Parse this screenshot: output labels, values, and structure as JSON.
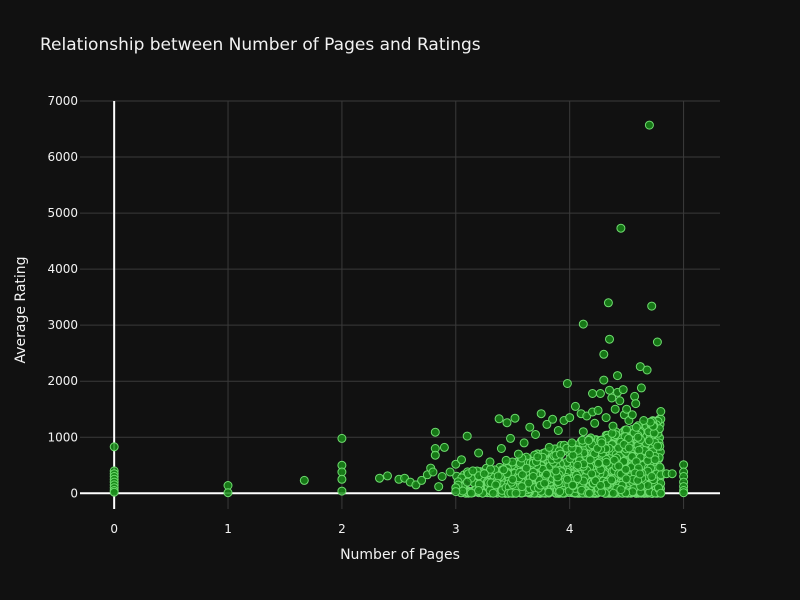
{
  "colors": {
    "background": "#111111",
    "marker": "#178a17",
    "marker_edge": "#6fdc6f",
    "grid": "#3a3a3a",
    "text": "#f2f2f2"
  },
  "chart_data": {
    "type": "scatter",
    "title": "Relationship between Number of Pages and Ratings",
    "xlabel": "Number of Pages",
    "ylabel": "Average Rating",
    "xlim": [
      -0.3,
      5.32
    ],
    "ylim": [
      -280,
      7000
    ],
    "xticks": [
      0,
      1,
      2,
      3,
      4,
      5
    ],
    "xtick_labels": [
      "0",
      "1",
      "2",
      "3",
      "4",
      "5"
    ],
    "yticks": [
      0,
      1000,
      2000,
      3000,
      4000,
      5000,
      6000,
      7000
    ],
    "ytick_labels": [
      "0",
      "1000",
      "2000",
      "3000",
      "4000",
      "5000",
      "6000",
      "7000"
    ],
    "grid": true,
    "legend": "none",
    "series": [
      {
        "points": [
          [
            0,
            830
          ],
          [
            0,
            400
          ],
          [
            0,
            350
          ],
          [
            0,
            300
          ],
          [
            0,
            250
          ],
          [
            0,
            200
          ],
          [
            0,
            150
          ],
          [
            0,
            100
          ],
          [
            0,
            50
          ],
          [
            0,
            20
          ],
          [
            1,
            140
          ],
          [
            1,
            10
          ],
          [
            1.67,
            230
          ],
          [
            2,
            980
          ],
          [
            2,
            500
          ],
          [
            2,
            380
          ],
          [
            2,
            250
          ],
          [
            2,
            40
          ],
          [
            2.33,
            270
          ],
          [
            2.4,
            310
          ],
          [
            2.5,
            250
          ],
          [
            2.55,
            270
          ],
          [
            2.6,
            200
          ],
          [
            2.65,
            150
          ],
          [
            2.7,
            230
          ],
          [
            2.75,
            330
          ],
          [
            2.78,
            450
          ],
          [
            2.8,
            380
          ],
          [
            2.82,
            1090
          ],
          [
            2.82,
            800
          ],
          [
            2.82,
            680
          ],
          [
            2.9,
            820
          ],
          [
            2.85,
            120
          ],
          [
            2.88,
            300
          ],
          [
            2.95,
            380
          ],
          [
            3.0,
            520
          ],
          [
            3.0,
            100
          ],
          [
            3.0,
            30
          ],
          [
            3.05,
            600
          ],
          [
            3.1,
            1020
          ],
          [
            3.1,
            200
          ],
          [
            3.15,
            400
          ],
          [
            3.2,
            720
          ],
          [
            3.2,
            50
          ],
          [
            3.25,
            350
          ],
          [
            3.3,
            560
          ],
          [
            3.35,
            150
          ],
          [
            3.38,
            1330
          ],
          [
            3.4,
            800
          ],
          [
            3.42,
            420
          ],
          [
            3.45,
            1260
          ],
          [
            3.48,
            980
          ],
          [
            3.5,
            250
          ],
          [
            3.52,
            1340
          ],
          [
            3.55,
            700
          ],
          [
            3.58,
            120
          ],
          [
            3.6,
            900
          ],
          [
            3.62,
            450
          ],
          [
            3.65,
            1180
          ],
          [
            3.68,
            300
          ],
          [
            3.7,
            1050
          ],
          [
            3.72,
            650
          ],
          [
            3.75,
            1420
          ],
          [
            3.78,
            180
          ],
          [
            3.8,
            1230
          ],
          [
            3.82,
            820
          ],
          [
            3.85,
            1320
          ],
          [
            3.88,
            400
          ],
          [
            3.9,
            1120
          ],
          [
            3.92,
            700
          ],
          [
            3.95,
            1300
          ],
          [
            3.98,
            1960
          ],
          [
            3.98,
            250
          ],
          [
            4.0,
            1350
          ],
          [
            4.02,
            900
          ],
          [
            4.05,
            1550
          ],
          [
            4.07,
            500
          ],
          [
            4.1,
            1420
          ],
          [
            4.12,
            3020
          ],
          [
            4.12,
            1100
          ],
          [
            4.15,
            1380
          ],
          [
            4.18,
            600
          ],
          [
            4.2,
            1780
          ],
          [
            4.2,
            1450
          ],
          [
            4.22,
            1250
          ],
          [
            4.25,
            1480
          ],
          [
            4.27,
            1780
          ],
          [
            4.28,
            900
          ],
          [
            4.3,
            2020
          ],
          [
            4.3,
            2480
          ],
          [
            4.32,
            1350
          ],
          [
            4.34,
            3400
          ],
          [
            4.35,
            1840
          ],
          [
            4.35,
            2750
          ],
          [
            4.37,
            1700
          ],
          [
            4.38,
            1200
          ],
          [
            4.4,
            1500
          ],
          [
            4.42,
            2100
          ],
          [
            4.42,
            1800
          ],
          [
            4.44,
            1650
          ],
          [
            4.45,
            4730
          ],
          [
            4.47,
            1850
          ],
          [
            4.48,
            1400
          ],
          [
            4.5,
            1500
          ],
          [
            4.52,
            1300
          ],
          [
            4.55,
            1400
          ],
          [
            4.57,
            1730
          ],
          [
            4.58,
            1600
          ],
          [
            4.6,
            1000
          ],
          [
            4.62,
            2260
          ],
          [
            4.63,
            1880
          ],
          [
            4.65,
            1300
          ],
          [
            4.68,
            2200
          ],
          [
            4.7,
            6570
          ],
          [
            4.72,
            3340
          ],
          [
            4.75,
            600
          ],
          [
            4.77,
            2700
          ],
          [
            4.8,
            1460
          ],
          [
            4.8,
            330
          ],
          [
            4.85,
            350
          ],
          [
            4.9,
            350
          ],
          [
            4.7,
            700
          ],
          [
            4.72,
            300
          ],
          [
            4.78,
            100
          ],
          [
            4.8,
            0
          ],
          [
            5,
            510
          ],
          [
            5,
            380
          ],
          [
            5,
            300
          ],
          [
            5,
            200
          ],
          [
            5,
            120
          ],
          [
            5,
            50
          ],
          [
            5,
            10
          ]
        ]
      }
    ]
  }
}
